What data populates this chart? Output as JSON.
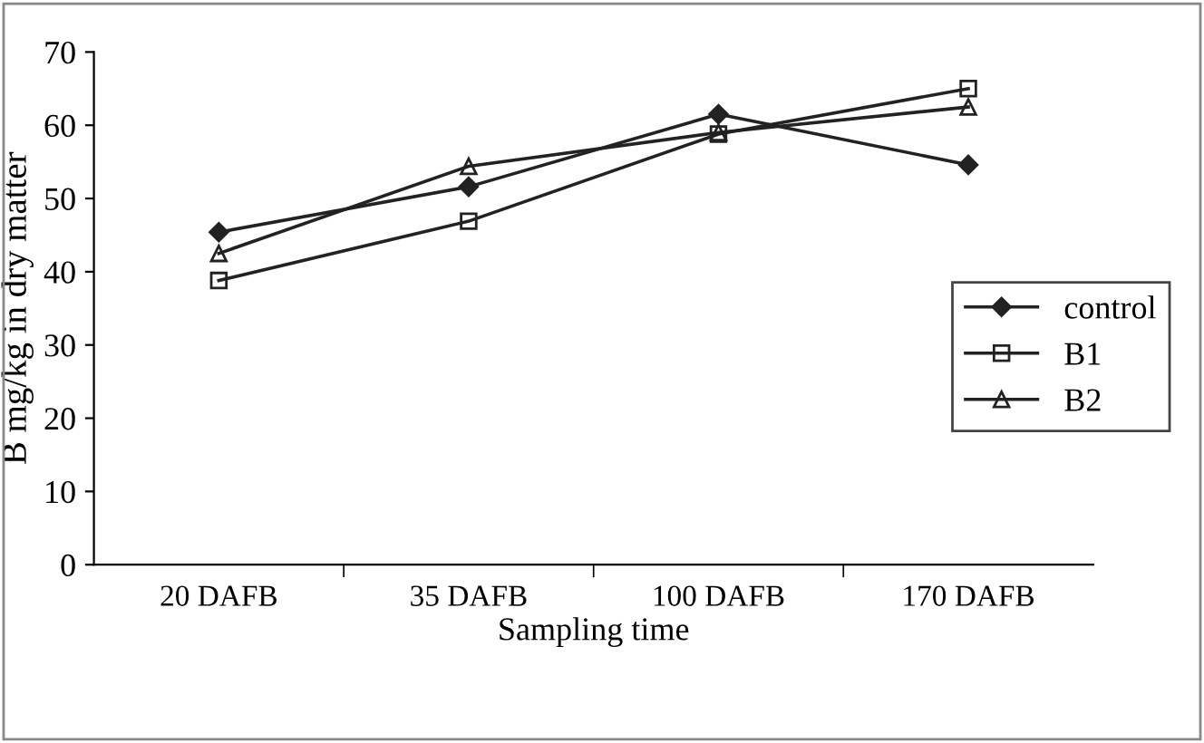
{
  "chart_data": {
    "type": "line",
    "xlabel": "Sampling time",
    "ylabel": "B mg/kg in dry matter",
    "categories": [
      "20 DAFB",
      "35 DAFB",
      "100 DAFB",
      "170 DAFB"
    ],
    "series": [
      {
        "name": "control",
        "color": "#222222",
        "marker": "diamond",
        "values": [
          45.4,
          51.6,
          61.5,
          54.6
        ]
      },
      {
        "name": "B1",
        "color": "#222222",
        "marker": "square",
        "values": [
          38.8,
          46.9,
          58.8,
          65
        ]
      },
      {
        "name": "B2",
        "color": "#222222",
        "marker": "triangle",
        "values": [
          42.5,
          54.4,
          59,
          62.5
        ]
      }
    ],
    "ylim": [
      0,
      70
    ],
    "yticks": [
      0,
      10,
      20,
      30,
      40,
      50,
      60,
      70
    ],
    "grid": false,
    "legend": "right",
    "line_style": "solid"
  }
}
